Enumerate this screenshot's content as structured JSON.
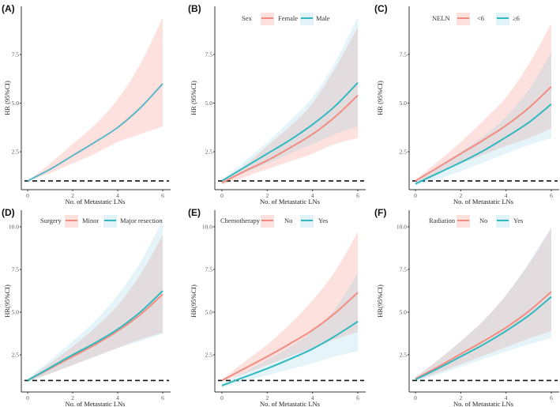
{
  "colors": {
    "group1_line": "#F28C80",
    "group2_line": "#2FB9BF",
    "group1_band": "#F8766D",
    "group2_band": "#7CC8E0",
    "single_line": "#5DB7C6",
    "reference": "#111111"
  },
  "chart_data": [
    {
      "type": "line",
      "panel_label": "(A)",
      "xlabel": "No. of Metastatic LNs",
      "ylabel": "HR (95%CI)",
      "xticks": [
        "0",
        "2",
        "4",
        "6"
      ],
      "yticks": [
        "2.5",
        "5.0",
        "7.5"
      ],
      "ylim": [
        0.55,
        9.9
      ],
      "reference_line": 1,
      "legend": null,
      "series": [
        {
          "name": "",
          "x": [
            0,
            1,
            2,
            3,
            4,
            5,
            6
          ],
          "hr": [
            1.0,
            1.6,
            2.3,
            3.0,
            3.75,
            4.75,
            6.0
          ],
          "lower": [
            1.0,
            1.4,
            1.9,
            2.4,
            3.0,
            3.4,
            3.8
          ],
          "upper": [
            1.0,
            1.9,
            2.9,
            3.9,
            5.2,
            7.0,
            9.4
          ]
        }
      ]
    },
    {
      "type": "line",
      "panel_label": "(B)",
      "xlabel": "No. of Metastatic LNs",
      "ylabel": "HR (95%CI)",
      "xticks": [
        "0",
        "2",
        "4",
        "6"
      ],
      "yticks": [
        "2.5",
        "5.0",
        "7.5"
      ],
      "ylim": [
        0.55,
        9.9
      ],
      "reference_line": 1,
      "legend": {
        "title": "Sex",
        "position": "top",
        "entries": [
          "Female",
          "Male"
        ]
      },
      "series": [
        {
          "name": "Female",
          "x": [
            0,
            1,
            2,
            3,
            4,
            5,
            6
          ],
          "hr": [
            0.9,
            1.5,
            2.05,
            2.7,
            3.4,
            4.3,
            5.4
          ],
          "lower": [
            0.8,
            1.2,
            1.6,
            2.0,
            2.4,
            2.9,
            3.2
          ],
          "upper": [
            1.0,
            1.8,
            2.8,
            3.8,
            5.0,
            6.8,
            8.9
          ]
        },
        {
          "name": "Male",
          "x": [
            0,
            1,
            2,
            3,
            4,
            5,
            6
          ],
          "hr": [
            1.0,
            1.7,
            2.4,
            3.1,
            3.9,
            4.85,
            6.05
          ],
          "lower": [
            0.95,
            1.4,
            1.9,
            2.4,
            2.9,
            3.4,
            3.8
          ],
          "upper": [
            1.05,
            2.0,
            3.0,
            4.1,
            5.3,
            7.1,
            9.4
          ]
        }
      ]
    },
    {
      "type": "line",
      "panel_label": "(C)",
      "xlabel": "No. of Metastatic LNs",
      "ylabel": "HR (95%CI)",
      "xticks": [
        "0",
        "2",
        "4",
        "6"
      ],
      "yticks": [
        "2.5",
        "5.0",
        "7.5"
      ],
      "ylim": [
        0.55,
        9.9
      ],
      "reference_line": 1,
      "legend": {
        "title": "NELN",
        "position": "top",
        "entries": [
          "<6",
          "≥6"
        ]
      },
      "series": [
        {
          "name": "<6",
          "x": [
            0,
            1,
            2,
            3,
            4,
            5,
            6
          ],
          "hr": [
            1.0,
            1.7,
            2.4,
            3.1,
            3.85,
            4.75,
            5.85
          ],
          "lower": [
            0.95,
            1.4,
            1.9,
            2.35,
            2.8,
            3.2,
            3.7
          ],
          "upper": [
            1.05,
            2.0,
            3.0,
            4.1,
            5.3,
            7.0,
            9.1
          ]
        },
        {
          "name": "≥6",
          "x": [
            0,
            1,
            2,
            3,
            4,
            5,
            6
          ],
          "hr": [
            0.85,
            1.4,
            1.95,
            2.55,
            3.25,
            4.0,
            4.95
          ],
          "lower": [
            0.75,
            1.1,
            1.5,
            1.95,
            2.4,
            2.85,
            3.2
          ],
          "upper": [
            0.95,
            1.7,
            2.5,
            3.3,
            4.3,
            5.7,
            7.6
          ]
        }
      ]
    },
    {
      "type": "line",
      "panel_label": "(D)",
      "xlabel": "No. of Metastatic LNs",
      "ylabel": "HR(95%CI)",
      "xticks": [
        "0",
        "2",
        "4",
        "6"
      ],
      "yticks": [
        "2.5",
        "5.0",
        "7.5",
        "10.0"
      ],
      "ylim": [
        0.4,
        10.9
      ],
      "reference_line": 1,
      "legend": {
        "title": "Surgery",
        "position": "top",
        "entries": [
          "Minor",
          "Major resection"
        ]
      },
      "series": [
        {
          "name": "Minor",
          "x": [
            0,
            1,
            2,
            3,
            4,
            5,
            6
          ],
          "hr": [
            1.0,
            1.7,
            2.4,
            3.1,
            3.9,
            4.85,
            6.05
          ],
          "lower": [
            0.95,
            1.4,
            1.9,
            2.4,
            2.9,
            3.4,
            3.8
          ],
          "upper": [
            1.05,
            2.0,
            3.0,
            4.1,
            5.4,
            7.2,
            9.5
          ]
        },
        {
          "name": "Major resection",
          "x": [
            0,
            1,
            2,
            3,
            4,
            5,
            6
          ],
          "hr": [
            1.0,
            1.75,
            2.5,
            3.2,
            4.0,
            5.0,
            6.25
          ],
          "lower": [
            0.9,
            1.4,
            1.9,
            2.4,
            2.9,
            3.3,
            3.75
          ],
          "upper": [
            1.1,
            2.2,
            3.3,
            4.5,
            6.0,
            7.9,
            10.4
          ]
        }
      ]
    },
    {
      "type": "line",
      "panel_label": "(E)",
      "xlabel": "No. of Metastatic LNs",
      "ylabel": "HR(95%CI)",
      "xticks": [
        "0",
        "2",
        "4",
        "6"
      ],
      "yticks": [
        "2.5",
        "5.0",
        "7.5",
        "10.0"
      ],
      "ylim": [
        0.4,
        10.9
      ],
      "reference_line": 1,
      "legend": {
        "title": "Chemotherapy",
        "position": "top",
        "entries": [
          "No",
          "Yes"
        ]
      },
      "series": [
        {
          "name": "No",
          "x": [
            0,
            1,
            2,
            3,
            4,
            5,
            6
          ],
          "hr": [
            1.0,
            1.7,
            2.4,
            3.15,
            3.95,
            4.95,
            6.15
          ],
          "lower": [
            0.95,
            1.4,
            1.9,
            2.4,
            2.9,
            3.4,
            3.85
          ],
          "upper": [
            1.05,
            2.1,
            3.1,
            4.3,
            5.7,
            7.4,
            9.7
          ]
        },
        {
          "name": "Yes",
          "x": [
            0,
            1,
            2,
            3,
            4,
            5,
            6
          ],
          "hr": [
            0.7,
            1.2,
            1.7,
            2.25,
            2.85,
            3.6,
            4.45
          ],
          "lower": [
            0.6,
            0.95,
            1.3,
            1.65,
            2.0,
            2.4,
            2.7
          ],
          "upper": [
            0.8,
            1.5,
            2.2,
            2.95,
            3.9,
            5.2,
            7.3
          ]
        }
      ]
    },
    {
      "type": "line",
      "panel_label": "(F)",
      "xlabel": "No. of Metastatic LNs",
      "ylabel": "HR(95%CI)",
      "xticks": [
        "0",
        "2",
        "4",
        "6"
      ],
      "yticks": [
        "2.5",
        "5.0",
        "7.5",
        "10.0"
      ],
      "ylim": [
        0.4,
        10.9
      ],
      "reference_line": 1,
      "legend": {
        "title": "Radiation",
        "position": "top",
        "entries": [
          "No",
          "Yes"
        ]
      },
      "series": [
        {
          "name": "No",
          "x": [
            0,
            1,
            2,
            3,
            4,
            5,
            6
          ],
          "hr": [
            1.1,
            1.8,
            2.55,
            3.3,
            4.1,
            5.05,
            6.2
          ],
          "lower": [
            1.0,
            1.45,
            1.95,
            2.45,
            2.95,
            3.45,
            3.9
          ],
          "upper": [
            1.2,
            2.2,
            3.3,
            4.5,
            6.0,
            7.8,
            9.9
          ]
        },
        {
          "name": "Yes",
          "x": [
            0,
            1,
            2,
            3,
            4,
            5,
            6
          ],
          "hr": [
            1.05,
            1.7,
            2.4,
            3.1,
            3.9,
            4.8,
            5.9
          ],
          "lower": [
            0.95,
            1.35,
            1.8,
            2.25,
            2.7,
            3.1,
            3.5
          ],
          "upper": [
            1.15,
            2.2,
            3.3,
            4.5,
            6.0,
            7.9,
            10.0
          ]
        }
      ]
    }
  ]
}
